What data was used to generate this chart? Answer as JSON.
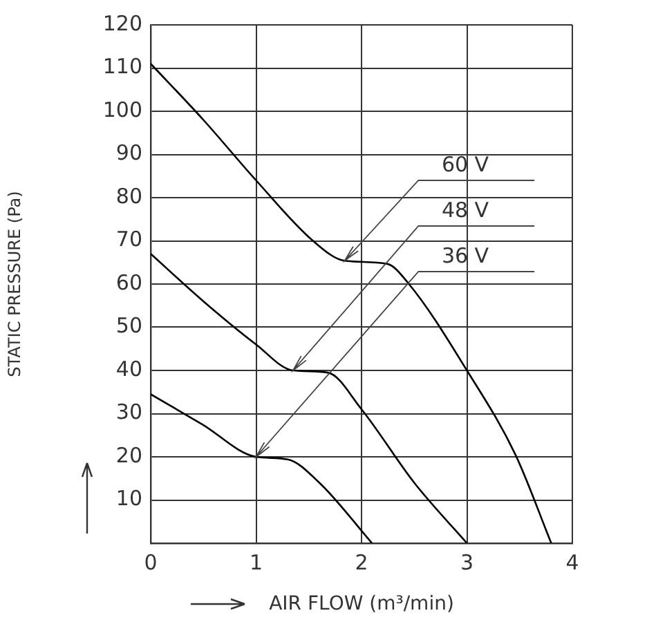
{
  "chart_data": {
    "type": "line",
    "xlabel": "AIR FLOW (m³/min)",
    "ylabel": "STATIC PRESSURE (Pa)",
    "xlim": [
      0,
      4
    ],
    "xticks": [
      0,
      1,
      2,
      3,
      4
    ],
    "ylim": [
      0,
      120
    ],
    "yticks": [
      {
        "value": 0,
        "label": null
      },
      10,
      20,
      30,
      40,
      50,
      60,
      70,
      80,
      90,
      100,
      110,
      120
    ],
    "grid": true,
    "legend": false,
    "marker": "none",
    "line_style": "solid",
    "series": [
      {
        "color": "#000000",
        "x": [
          0,
          0.5,
          1,
          1.54,
          1.84,
          2.24,
          2.45,
          3.0,
          3.46,
          3.8
        ],
        "values": [
          111,
          98,
          84,
          70,
          65.4,
          64.7,
          60,
          40,
          20.5,
          0
        ]
      },
      {
        "color": "#000000",
        "x": [
          0,
          0.5,
          1,
          1.35,
          1.68,
          2.0,
          2.5,
          3.0
        ],
        "values": [
          67,
          56,
          46,
          40,
          39.5,
          31,
          14,
          0
        ]
      },
      {
        "color": "#000000",
        "x": [
          0,
          0.49,
          1,
          1.3,
          1.6,
          2.1
        ],
        "values": [
          34.5,
          27.5,
          20,
          19.4,
          14,
          0
        ]
      }
    ],
    "annotations": [
      {
        "text": "60 V",
        "x": 1.84,
        "y": 65.4
      },
      {
        "text": "48 V",
        "x": 1.35,
        "y": 40
      },
      {
        "text": "36 V",
        "x": 1,
        "y": 20
      }
    ]
  }
}
